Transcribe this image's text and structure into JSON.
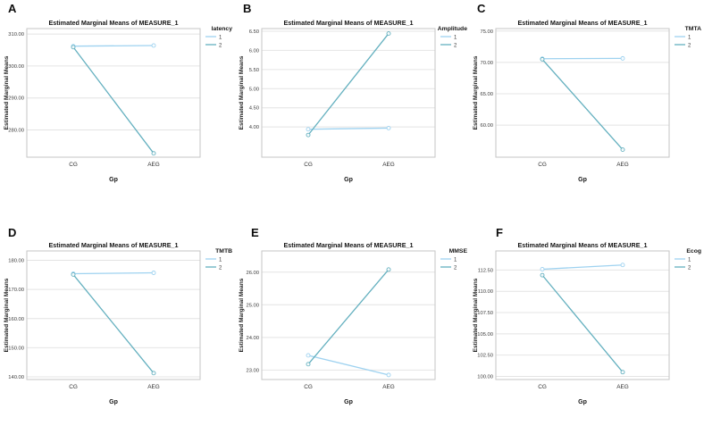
{
  "page": {
    "background": "#ffffff"
  },
  "colors": {
    "series1": "#9ed2f0",
    "series2": "#64b0bf",
    "grid": "#e4e4e4",
    "frame": "#c6c6c6",
    "marker_fill": "#ffffff"
  },
  "chart_data": [
    {
      "type": "line",
      "panel_letter": "A",
      "title": "Estimated Marginal Means of MEASURE_1",
      "legend_title": "latency",
      "legend_entries": [
        "1",
        "2"
      ],
      "legend_position": "right",
      "xlabel": "Gp",
      "ylabel": "Estimated Marginal Means",
      "categories": [
        "CG",
        "AEG"
      ],
      "yticks": [
        310,
        300,
        290,
        280
      ],
      "ytick_labels": [
        "310.00",
        "300.00",
        "290.00",
        "280.00"
      ],
      "ylim": [
        271.5,
        311.7
      ],
      "grid": true,
      "series": [
        {
          "name": "1",
          "values": [
            306.2,
            306.4
          ]
        },
        {
          "name": "2",
          "values": [
            305.9,
            272.7
          ]
        }
      ]
    },
    {
      "type": "line",
      "panel_letter": "B",
      "title": "Estimated Marginal Means of MEASURE_1",
      "legend_title": "Amplitude",
      "legend_entries": [
        "1",
        "2"
      ],
      "legend_position": "right",
      "xlabel": "Gp",
      "ylabel": "Estimated Marginal Means",
      "categories": [
        "CG",
        "AEG"
      ],
      "yticks": [
        6.5,
        6.0,
        5.5,
        5.0,
        4.5,
        4.0
      ],
      "ytick_labels": [
        "6.50",
        "6.00",
        "5.50",
        "5.00",
        "4.50",
        "4.00"
      ],
      "ylim": [
        3.21,
        6.57
      ],
      "grid": true,
      "series": [
        {
          "name": "1",
          "values": [
            3.94,
            3.97
          ]
        },
        {
          "name": "2",
          "values": [
            3.79,
            6.44
          ]
        }
      ]
    },
    {
      "type": "line",
      "panel_letter": "C",
      "title": "Estimated Marginal Means of MEASURE_1",
      "legend_title": "TMTA",
      "legend_entries": [
        "1",
        "2"
      ],
      "legend_position": "right",
      "xlabel": "Gp",
      "ylabel": "Estimated Marginal Means",
      "categories": [
        "CG",
        "AEG"
      ],
      "yticks": [
        75,
        70,
        65,
        60
      ],
      "ytick_labels": [
        "75.00",
        "70.00",
        "65.00",
        "60.00"
      ],
      "ylim": [
        54.9,
        75.4
      ],
      "grid": true,
      "series": [
        {
          "name": "1",
          "values": [
            70.6,
            70.65
          ]
        },
        {
          "name": "2",
          "values": [
            70.5,
            56.1
          ]
        }
      ]
    },
    {
      "type": "line",
      "panel_letter": "D",
      "title": "Estimated Marginal Means of MEASURE_1",
      "legend_title": "TMTB",
      "legend_entries": [
        "1",
        "2"
      ],
      "legend_position": "right",
      "xlabel": "Gp",
      "ylabel": "Estimated Marginal Means",
      "categories": [
        "CG",
        "AEG"
      ],
      "yticks": [
        180,
        170,
        160,
        150,
        140
      ],
      "ytick_labels": [
        "180.00",
        "170.00",
        "160.00",
        "150.00",
        "140.00"
      ],
      "ylim": [
        139.1,
        183.2
      ],
      "grid": true,
      "series": [
        {
          "name": "1",
          "values": [
            175.4,
            175.7
          ]
        },
        {
          "name": "2",
          "values": [
            175.1,
            141.3
          ]
        }
      ]
    },
    {
      "type": "line",
      "panel_letter": "E",
      "title": "Estimated Marginal Means of MEASURE_1",
      "legend_title": "MMSE",
      "legend_entries": [
        "1",
        "2"
      ],
      "legend_position": "right",
      "xlabel": "Gp",
      "ylabel": "Estimated Marginal Means",
      "categories": [
        "CG",
        "AEG"
      ],
      "yticks": [
        26,
        25,
        24,
        23
      ],
      "ytick_labels": [
        "26.00",
        "25.00",
        "24.00",
        "23.00"
      ],
      "ylim": [
        22.71,
        26.65
      ],
      "grid": true,
      "series": [
        {
          "name": "1",
          "values": [
            23.45,
            22.85
          ]
        },
        {
          "name": "2",
          "values": [
            23.18,
            26.08
          ]
        }
      ]
    },
    {
      "type": "line",
      "panel_letter": "F",
      "title": "Estimated Marginal Means of MEASURE_1",
      "legend_title": "Ecog",
      "legend_entries": [
        "1",
        "2"
      ],
      "legend_position": "right",
      "xlabel": "Gp",
      "ylabel": "Estimated Marginal Means",
      "categories": [
        "CG",
        "AEG"
      ],
      "yticks": [
        112.5,
        110.0,
        107.5,
        105.0,
        102.5,
        100.0
      ],
      "ytick_labels": [
        "112.50",
        "110.00",
        "107.50",
        "105.00",
        "102.50",
        "100.00"
      ],
      "ylim": [
        99.63,
        114.75
      ],
      "grid": true,
      "series": [
        {
          "name": "1",
          "values": [
            112.6,
            113.1
          ]
        },
        {
          "name": "2",
          "values": [
            111.9,
            100.5
          ]
        }
      ]
    }
  ]
}
